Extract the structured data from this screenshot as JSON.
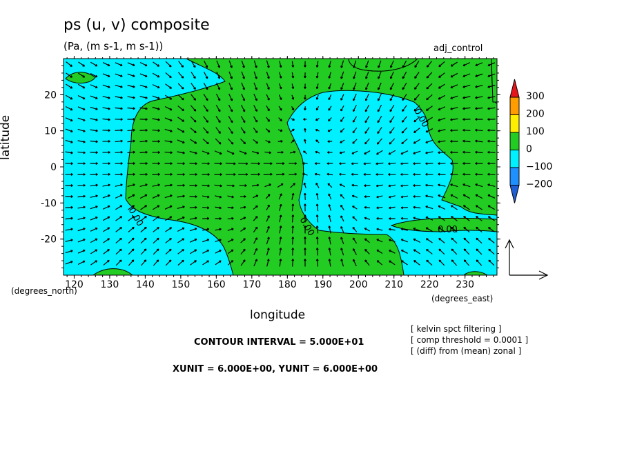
{
  "chart_data": {
    "type": "contour-vector",
    "title": "ps (u, v) composite",
    "units": "(Pa, (m s-1, m s-1))",
    "run_label": "adj_control",
    "xlabel": "longitude",
    "ylabel": "latitude",
    "x_unit_label": "(degrees_east)",
    "y_unit_label": "(degrees_north)",
    "xlim": [
      117,
      239
    ],
    "ylim": [
      -30,
      30
    ],
    "x_ticks": [
      120,
      130,
      140,
      150,
      160,
      170,
      180,
      190,
      200,
      210,
      220,
      230
    ],
    "y_ticks": [
      -20,
      -10,
      0,
      10,
      20
    ],
    "contour_label": "0.00",
    "colorbar": {
      "levels": [
        "300",
        "200",
        "100",
        "0",
        "−100",
        "−200"
      ],
      "colors": [
        "#e8141c",
        "#ff9d00",
        "#ffee00",
        "#22cc22",
        "#00f0ff",
        "#1e90ff",
        "#1f5fd6"
      ]
    },
    "fill_colors": {
      "positive": "#22cc22",
      "negative": "#00f0ff"
    },
    "contour_interval_text": "CONTOUR INTERVAL = 5.000E+01",
    "unit_vector_text": "XUNIT = 6.000E+00, YUNIT = 6.000E+00",
    "notes": [
      "[ kelvin spct filtering ]",
      "[ comp threshold = 0.0001 ]",
      "[ (diff) from (mean) zonal ]"
    ]
  }
}
